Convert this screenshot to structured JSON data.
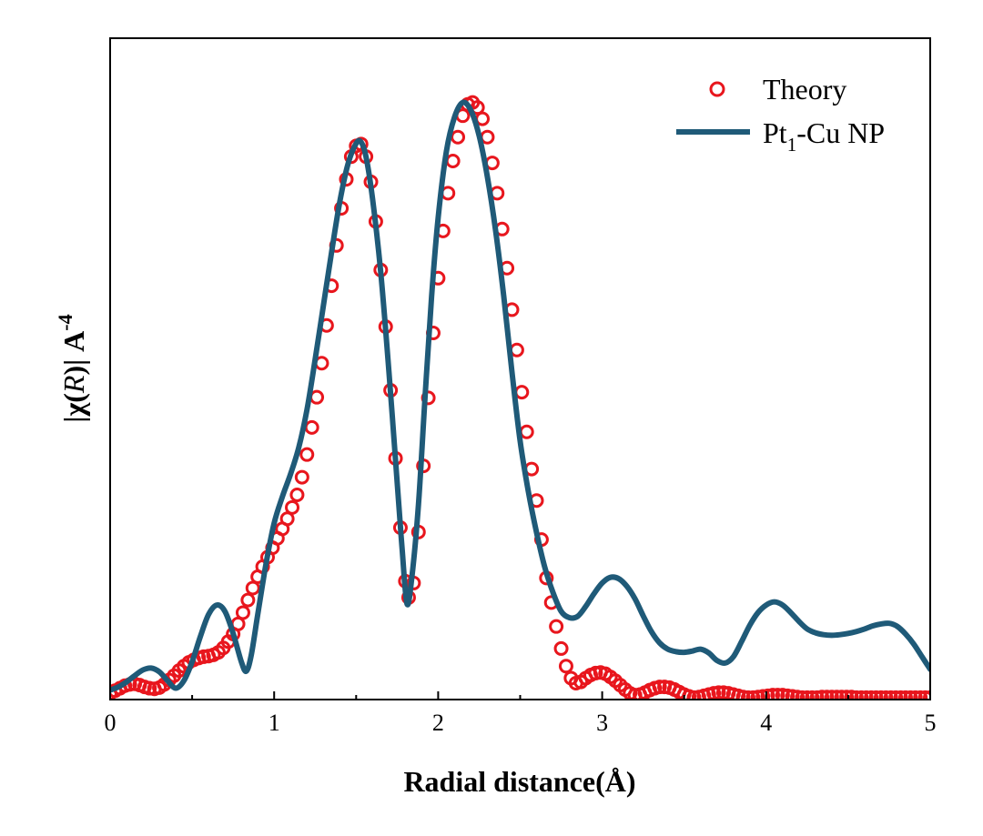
{
  "chart_data": {
    "type": "line",
    "title": "",
    "xlabel": "Radial distance(Å)",
    "ylabel": {
      "open": "|χ(",
      "var": "R",
      "close": ")| A",
      "sup": "-4"
    },
    "xlim": [
      0,
      5
    ],
    "ylim": [
      0,
      1.05
    ],
    "xticks": [
      0,
      1,
      2,
      3,
      4,
      5
    ],
    "x_tick_labels": [
      "0",
      "1",
      "2",
      "3",
      "4",
      "5"
    ],
    "x_minor_ticks": [
      0.5,
      1.5,
      2.5,
      3.5,
      4.5
    ],
    "y_tick_labels_shown": false,
    "grid": false,
    "legend": {
      "position": "top-right",
      "entries": [
        {
          "series": "theory",
          "label": "Theory"
        },
        {
          "series": "pt1cu",
          "label_main": "Pt",
          "label_sub": "1",
          "label_rest": "-Cu NP"
        }
      ]
    },
    "series": [
      {
        "name": "Theory",
        "style": "open-circle",
        "color": "#e8161d",
        "points": [
          [
            0.0,
            0.01
          ],
          [
            0.03,
            0.014
          ],
          [
            0.06,
            0.018
          ],
          [
            0.09,
            0.022
          ],
          [
            0.12,
            0.024
          ],
          [
            0.15,
            0.025
          ],
          [
            0.18,
            0.023
          ],
          [
            0.21,
            0.02
          ],
          [
            0.24,
            0.018
          ],
          [
            0.27,
            0.017
          ],
          [
            0.3,
            0.019
          ],
          [
            0.33,
            0.024
          ],
          [
            0.36,
            0.031
          ],
          [
            0.39,
            0.038
          ],
          [
            0.42,
            0.046
          ],
          [
            0.45,
            0.053
          ],
          [
            0.48,
            0.059
          ],
          [
            0.51,
            0.063
          ],
          [
            0.54,
            0.066
          ],
          [
            0.57,
            0.068
          ],
          [
            0.6,
            0.069
          ],
          [
            0.63,
            0.071
          ],
          [
            0.66,
            0.075
          ],
          [
            0.69,
            0.082
          ],
          [
            0.72,
            0.092
          ],
          [
            0.75,
            0.104
          ],
          [
            0.78,
            0.12
          ],
          [
            0.81,
            0.138
          ],
          [
            0.84,
            0.158
          ],
          [
            0.87,
            0.177
          ],
          [
            0.9,
            0.195
          ],
          [
            0.93,
            0.211
          ],
          [
            0.96,
            0.226
          ],
          [
            0.99,
            0.241
          ],
          [
            1.02,
            0.256
          ],
          [
            1.05,
            0.271
          ],
          [
            1.08,
            0.287
          ],
          [
            1.11,
            0.305
          ],
          [
            1.14,
            0.325
          ],
          [
            1.17,
            0.353
          ],
          [
            1.2,
            0.389
          ],
          [
            1.23,
            0.432
          ],
          [
            1.26,
            0.48
          ],
          [
            1.29,
            0.534
          ],
          [
            1.32,
            0.594
          ],
          [
            1.35,
            0.657
          ],
          [
            1.38,
            0.721
          ],
          [
            1.41,
            0.78
          ],
          [
            1.44,
            0.826
          ],
          [
            1.47,
            0.862
          ],
          [
            1.5,
            0.879
          ],
          [
            1.53,
            0.882
          ],
          [
            1.56,
            0.862
          ],
          [
            1.59,
            0.822
          ],
          [
            1.62,
            0.759
          ],
          [
            1.65,
            0.682
          ],
          [
            1.68,
            0.592
          ],
          [
            1.71,
            0.491
          ],
          [
            1.74,
            0.383
          ],
          [
            1.77,
            0.273
          ],
          [
            1.8,
            0.188
          ],
          [
            1.82,
            0.162
          ],
          [
            1.85,
            0.185
          ],
          [
            1.88,
            0.266
          ],
          [
            1.91,
            0.371
          ],
          [
            1.94,
            0.479
          ],
          [
            1.97,
            0.582
          ],
          [
            2.0,
            0.669
          ],
          [
            2.03,
            0.744
          ],
          [
            2.06,
            0.804
          ],
          [
            2.09,
            0.855
          ],
          [
            2.12,
            0.893
          ],
          [
            2.15,
            0.927
          ],
          [
            2.18,
            0.945
          ],
          [
            2.21,
            0.948
          ],
          [
            2.24,
            0.94
          ],
          [
            2.27,
            0.922
          ],
          [
            2.3,
            0.893
          ],
          [
            2.33,
            0.852
          ],
          [
            2.36,
            0.804
          ],
          [
            2.39,
            0.747
          ],
          [
            2.42,
            0.685
          ],
          [
            2.45,
            0.619
          ],
          [
            2.48,
            0.555
          ],
          [
            2.51,
            0.488
          ],
          [
            2.54,
            0.425
          ],
          [
            2.57,
            0.366
          ],
          [
            2.6,
            0.316
          ],
          [
            2.63,
            0.254
          ],
          [
            2.66,
            0.193
          ],
          [
            2.69,
            0.154
          ],
          [
            2.72,
            0.116
          ],
          [
            2.75,
            0.081
          ],
          [
            2.78,
            0.053
          ],
          [
            2.81,
            0.034
          ],
          [
            2.84,
            0.026
          ],
          [
            2.87,
            0.028
          ],
          [
            2.9,
            0.034
          ],
          [
            2.93,
            0.039
          ],
          [
            2.96,
            0.042
          ],
          [
            2.99,
            0.043
          ],
          [
            3.02,
            0.041
          ],
          [
            3.05,
            0.036
          ],
          [
            3.08,
            0.03
          ],
          [
            3.11,
            0.023
          ],
          [
            3.14,
            0.016
          ],
          [
            3.17,
            0.01
          ],
          [
            3.2,
            0.007
          ],
          [
            3.23,
            0.008
          ],
          [
            3.26,
            0.011
          ],
          [
            3.29,
            0.015
          ],
          [
            3.32,
            0.018
          ],
          [
            3.35,
            0.02
          ],
          [
            3.38,
            0.02
          ],
          [
            3.41,
            0.019
          ],
          [
            3.44,
            0.016
          ],
          [
            3.47,
            0.012
          ],
          [
            3.5,
            0.008
          ],
          [
            3.53,
            0.005
          ],
          [
            3.56,
            0.003
          ],
          [
            3.59,
            0.004
          ],
          [
            3.62,
            0.006
          ],
          [
            3.65,
            0.008
          ],
          [
            3.68,
            0.01
          ],
          [
            3.71,
            0.011
          ],
          [
            3.74,
            0.011
          ],
          [
            3.77,
            0.01
          ],
          [
            3.8,
            0.008
          ],
          [
            3.83,
            0.006
          ],
          [
            3.86,
            0.004
          ],
          [
            3.89,
            0.003
          ],
          [
            3.92,
            0.003
          ],
          [
            3.95,
            0.004
          ],
          [
            3.98,
            0.005
          ],
          [
            4.01,
            0.006
          ],
          [
            4.04,
            0.007
          ],
          [
            4.07,
            0.007
          ],
          [
            4.1,
            0.007
          ],
          [
            4.13,
            0.006
          ],
          [
            4.16,
            0.005
          ],
          [
            4.19,
            0.004
          ],
          [
            4.22,
            0.003
          ],
          [
            4.25,
            0.003
          ],
          [
            4.28,
            0.003
          ],
          [
            4.31,
            0.003
          ],
          [
            4.34,
            0.004
          ],
          [
            4.37,
            0.004
          ],
          [
            4.4,
            0.004
          ],
          [
            4.43,
            0.004
          ],
          [
            4.46,
            0.004
          ],
          [
            4.49,
            0.004
          ],
          [
            4.52,
            0.004
          ],
          [
            4.55,
            0.003
          ],
          [
            4.58,
            0.003
          ],
          [
            4.61,
            0.003
          ],
          [
            4.64,
            0.003
          ],
          [
            4.67,
            0.003
          ],
          [
            4.7,
            0.003
          ],
          [
            4.73,
            0.003
          ],
          [
            4.76,
            0.003
          ],
          [
            4.79,
            0.003
          ],
          [
            4.82,
            0.003
          ],
          [
            4.85,
            0.003
          ],
          [
            4.88,
            0.003
          ],
          [
            4.91,
            0.003
          ],
          [
            4.94,
            0.003
          ],
          [
            4.97,
            0.003
          ],
          [
            5.0,
            0.003
          ]
        ]
      },
      {
        "name": "Pt1-Cu NP",
        "style": "line",
        "color": "#1f5a78",
        "points": [
          [
            0.0,
            0.015
          ],
          [
            0.05,
            0.02
          ],
          [
            0.1,
            0.028
          ],
          [
            0.15,
            0.038
          ],
          [
            0.2,
            0.047
          ],
          [
            0.25,
            0.05
          ],
          [
            0.3,
            0.044
          ],
          [
            0.35,
            0.03
          ],
          [
            0.4,
            0.018
          ],
          [
            0.45,
            0.03
          ],
          [
            0.5,
            0.06
          ],
          [
            0.55,
            0.1
          ],
          [
            0.6,
            0.135
          ],
          [
            0.65,
            0.15
          ],
          [
            0.7,
            0.14
          ],
          [
            0.75,
            0.105
          ],
          [
            0.8,
            0.06
          ],
          [
            0.83,
            0.045
          ],
          [
            0.86,
            0.07
          ],
          [
            0.9,
            0.135
          ],
          [
            0.95,
            0.215
          ],
          [
            1.0,
            0.28
          ],
          [
            1.05,
            0.322
          ],
          [
            1.1,
            0.358
          ],
          [
            1.15,
            0.4
          ],
          [
            1.2,
            0.46
          ],
          [
            1.25,
            0.54
          ],
          [
            1.3,
            0.625
          ],
          [
            1.35,
            0.71
          ],
          [
            1.4,
            0.79
          ],
          [
            1.45,
            0.85
          ],
          [
            1.5,
            0.883
          ],
          [
            1.53,
            0.885
          ],
          [
            1.56,
            0.862
          ],
          [
            1.6,
            0.795
          ],
          [
            1.65,
            0.678
          ],
          [
            1.7,
            0.52
          ],
          [
            1.75,
            0.345
          ],
          [
            1.78,
            0.24
          ],
          [
            1.81,
            0.152
          ],
          [
            1.84,
            0.195
          ],
          [
            1.88,
            0.31
          ],
          [
            1.92,
            0.48
          ],
          [
            1.96,
            0.64
          ],
          [
            2.0,
            0.765
          ],
          [
            2.05,
            0.87
          ],
          [
            2.1,
            0.925
          ],
          [
            2.15,
            0.948
          ],
          [
            2.2,
            0.935
          ],
          [
            2.25,
            0.895
          ],
          [
            2.3,
            0.83
          ],
          [
            2.35,
            0.745
          ],
          [
            2.4,
            0.64
          ],
          [
            2.45,
            0.52
          ],
          [
            2.5,
            0.41
          ],
          [
            2.55,
            0.33
          ],
          [
            2.6,
            0.265
          ],
          [
            2.65,
            0.21
          ],
          [
            2.7,
            0.17
          ],
          [
            2.75,
            0.14
          ],
          [
            2.8,
            0.13
          ],
          [
            2.85,
            0.132
          ],
          [
            2.9,
            0.148
          ],
          [
            2.95,
            0.168
          ],
          [
            3.0,
            0.185
          ],
          [
            3.05,
            0.194
          ],
          [
            3.1,
            0.192
          ],
          [
            3.15,
            0.18
          ],
          [
            3.2,
            0.16
          ],
          [
            3.25,
            0.133
          ],
          [
            3.3,
            0.108
          ],
          [
            3.35,
            0.09
          ],
          [
            3.4,
            0.08
          ],
          [
            3.45,
            0.076
          ],
          [
            3.5,
            0.075
          ],
          [
            3.55,
            0.077
          ],
          [
            3.6,
            0.08
          ],
          [
            3.65,
            0.074
          ],
          [
            3.7,
            0.062
          ],
          [
            3.75,
            0.058
          ],
          [
            3.8,
            0.068
          ],
          [
            3.85,
            0.092
          ],
          [
            3.9,
            0.118
          ],
          [
            3.95,
            0.138
          ],
          [
            4.0,
            0.15
          ],
          [
            4.05,
            0.155
          ],
          [
            4.1,
            0.15
          ],
          [
            4.15,
            0.138
          ],
          [
            4.2,
            0.124
          ],
          [
            4.25,
            0.112
          ],
          [
            4.3,
            0.106
          ],
          [
            4.35,
            0.103
          ],
          [
            4.4,
            0.102
          ],
          [
            4.45,
            0.103
          ],
          [
            4.5,
            0.105
          ],
          [
            4.55,
            0.108
          ],
          [
            4.6,
            0.112
          ],
          [
            4.65,
            0.117
          ],
          [
            4.7,
            0.12
          ],
          [
            4.75,
            0.121
          ],
          [
            4.8,
            0.116
          ],
          [
            4.85,
            0.104
          ],
          [
            4.9,
            0.088
          ],
          [
            4.95,
            0.068
          ],
          [
            5.0,
            0.048
          ]
        ]
      }
    ]
  }
}
